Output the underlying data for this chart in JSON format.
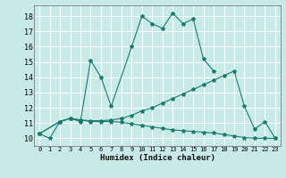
{
  "xlabel": "Humidex (Indice chaleur)",
  "background_color": "#c8eae6",
  "grid_color": "#ffffff",
  "line_color": "#1a7a6e",
  "xlim": [
    -0.5,
    23.5
  ],
  "ylim": [
    9.5,
    18.7
  ],
  "yticks": [
    10,
    11,
    12,
    13,
    14,
    15,
    16,
    17,
    18
  ],
  "xticks": [
    0,
    1,
    2,
    3,
    4,
    5,
    6,
    7,
    8,
    9,
    10,
    11,
    12,
    13,
    14,
    15,
    16,
    17,
    18,
    19,
    20,
    21,
    22,
    23
  ],
  "series": [
    {
      "x": [
        0,
        1,
        2,
        3,
        4,
        5,
        6,
        7,
        9,
        10,
        11,
        12,
        13,
        14,
        15,
        16,
        17
      ],
      "y": [
        10.3,
        10.0,
        11.1,
        11.3,
        11.1,
        15.1,
        14.0,
        12.1,
        16.0,
        18.0,
        17.5,
        17.2,
        18.2,
        17.5,
        17.8,
        15.2,
        14.4
      ]
    },
    {
      "x": [
        0,
        2,
        3,
        4,
        5,
        6,
        7,
        8,
        9,
        10,
        11,
        12,
        13,
        14,
        15,
        16,
        17,
        18,
        19,
        20,
        21,
        22,
        23
      ],
      "y": [
        10.3,
        11.1,
        11.3,
        11.2,
        11.15,
        11.15,
        11.2,
        11.3,
        11.5,
        11.8,
        12.0,
        12.3,
        12.6,
        12.9,
        13.2,
        13.5,
        13.8,
        14.1,
        14.4,
        12.1,
        10.6,
        11.1,
        10.0
      ]
    },
    {
      "x": [
        0,
        2,
        3,
        4,
        5,
        6,
        7,
        8,
        9,
        10,
        11,
        12,
        13,
        14,
        15,
        16,
        17,
        18,
        19,
        20,
        21,
        22,
        23
      ],
      "y": [
        10.3,
        11.1,
        11.3,
        11.2,
        11.1,
        11.1,
        11.1,
        11.05,
        10.95,
        10.85,
        10.75,
        10.65,
        10.55,
        10.5,
        10.45,
        10.4,
        10.35,
        10.25,
        10.15,
        10.05,
        10.0,
        10.0,
        10.0
      ]
    }
  ]
}
